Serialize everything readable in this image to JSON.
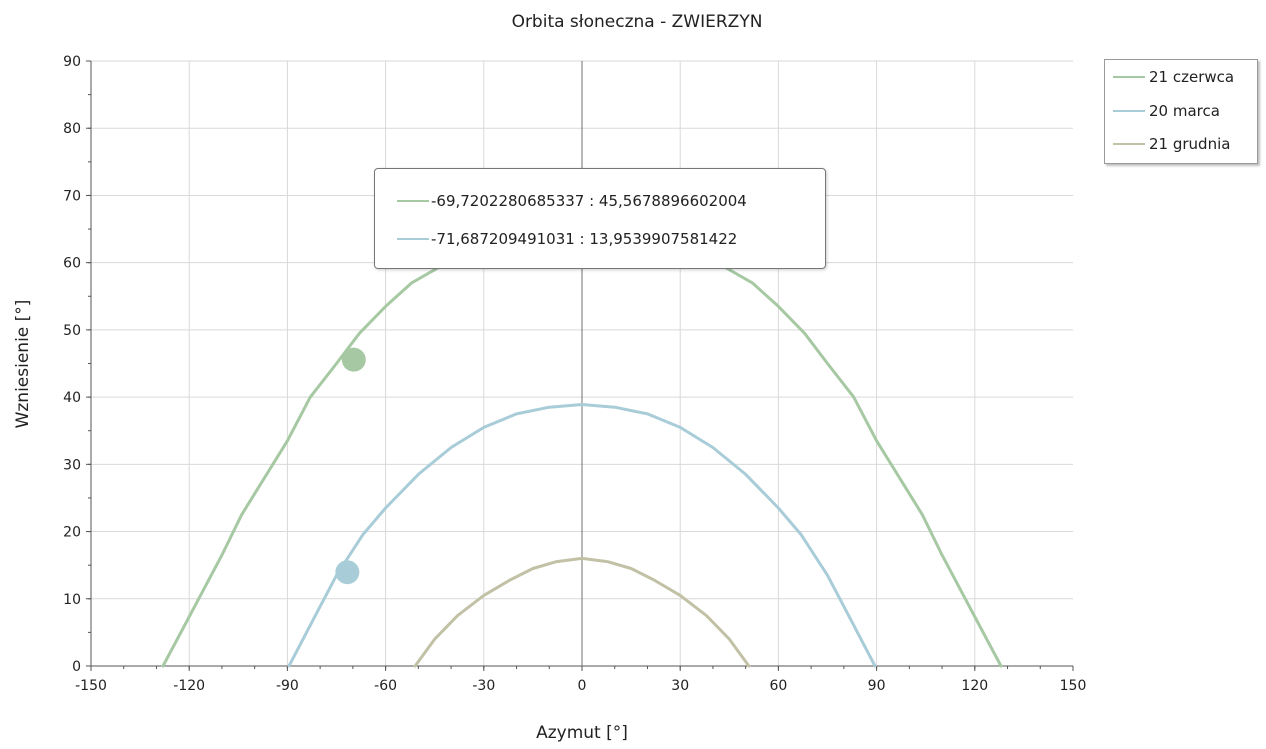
{
  "chart_data": {
    "type": "line",
    "title": "Orbita słoneczna - ZWIERZYN",
    "xlabel": "Azymut [°]",
    "ylabel": "Wzniesienie [°]",
    "xlim": [
      -150,
      150
    ],
    "ylim": [
      0,
      90
    ],
    "xticks": [
      "-150",
      "-120",
      "-90",
      "-60",
      "-30",
      "0",
      "30",
      "60",
      "90",
      "120",
      "150"
    ],
    "yticks": [
      "0",
      "10",
      "20",
      "30",
      "40",
      "50",
      "60",
      "70",
      "80",
      "90"
    ],
    "grid": true,
    "legend_position": "top-right",
    "series": [
      {
        "name": "21 czerwca",
        "color": "#a6c9a3",
        "x": [
          -128,
          -122,
          -116,
          -110,
          -104,
          -97,
          -90,
          -83,
          -75,
          -68,
          -60,
          -52,
          -43,
          -35,
          -28,
          -18,
          -8,
          0,
          8,
          18,
          28,
          35,
          43,
          52,
          60,
          68,
          75,
          83,
          90,
          97,
          104,
          110,
          116,
          122,
          128
        ],
        "y": [
          0,
          5.5,
          11,
          16.5,
          22.5,
          28,
          33.5,
          40,
          45,
          49.5,
          53.5,
          57,
          59.5,
          61,
          62,
          63,
          63.5,
          63.5,
          63.5,
          63,
          62,
          61,
          59.5,
          57,
          53.5,
          49.5,
          45,
          40,
          33.5,
          28,
          22.5,
          16.5,
          11,
          5.5,
          0
        ]
      },
      {
        "name": "20 marca",
        "color": "#a8ccd8",
        "x": [
          -89.5,
          -82,
          -75,
          -67,
          -60,
          -50,
          -40,
          -30,
          -20,
          -10,
          0,
          10,
          20,
          30,
          40,
          50,
          60,
          67,
          75,
          82,
          89.5
        ],
        "y": [
          0,
          7,
          13.5,
          19.5,
          23.5,
          28.5,
          32.5,
          35.5,
          37.5,
          38.5,
          38.9,
          38.5,
          37.5,
          35.5,
          32.5,
          28.5,
          23.5,
          19.5,
          13.5,
          7,
          0
        ],
        "note": ""
      },
      {
        "name": "21 grudnia",
        "color": "#c2c1a6",
        "x": [
          -51,
          -45,
          -38,
          -30,
          -22,
          -15,
          -8,
          0,
          8,
          15,
          22,
          30,
          38,
          45,
          51
        ],
        "y": [
          0,
          4,
          7.5,
          10.5,
          12.8,
          14.5,
          15.5,
          16,
          15.5,
          14.5,
          12.8,
          10.5,
          7.5,
          4,
          0
        ]
      }
    ],
    "markers": [
      {
        "series": "21 czerwca",
        "x": -69.7202280685337,
        "y": 45.5678896602004,
        "color": "#a6c9a3"
      },
      {
        "series": "20 marca",
        "x": -71.687209491031,
        "y": 13.9539907581422,
        "color": "#a8ccd8"
      }
    ]
  },
  "tooltip": {
    "rows": [
      {
        "text": "-69,7202280685337 : 45,5678896602004",
        "color": "#a6c9a3"
      },
      {
        "text": "-71,687209491031 : 13,9539907581422",
        "color": "#a8ccd8"
      }
    ]
  },
  "colors": {
    "grid": "#d9d9d9",
    "axis": "#555555",
    "zero_line": "#707070"
  }
}
